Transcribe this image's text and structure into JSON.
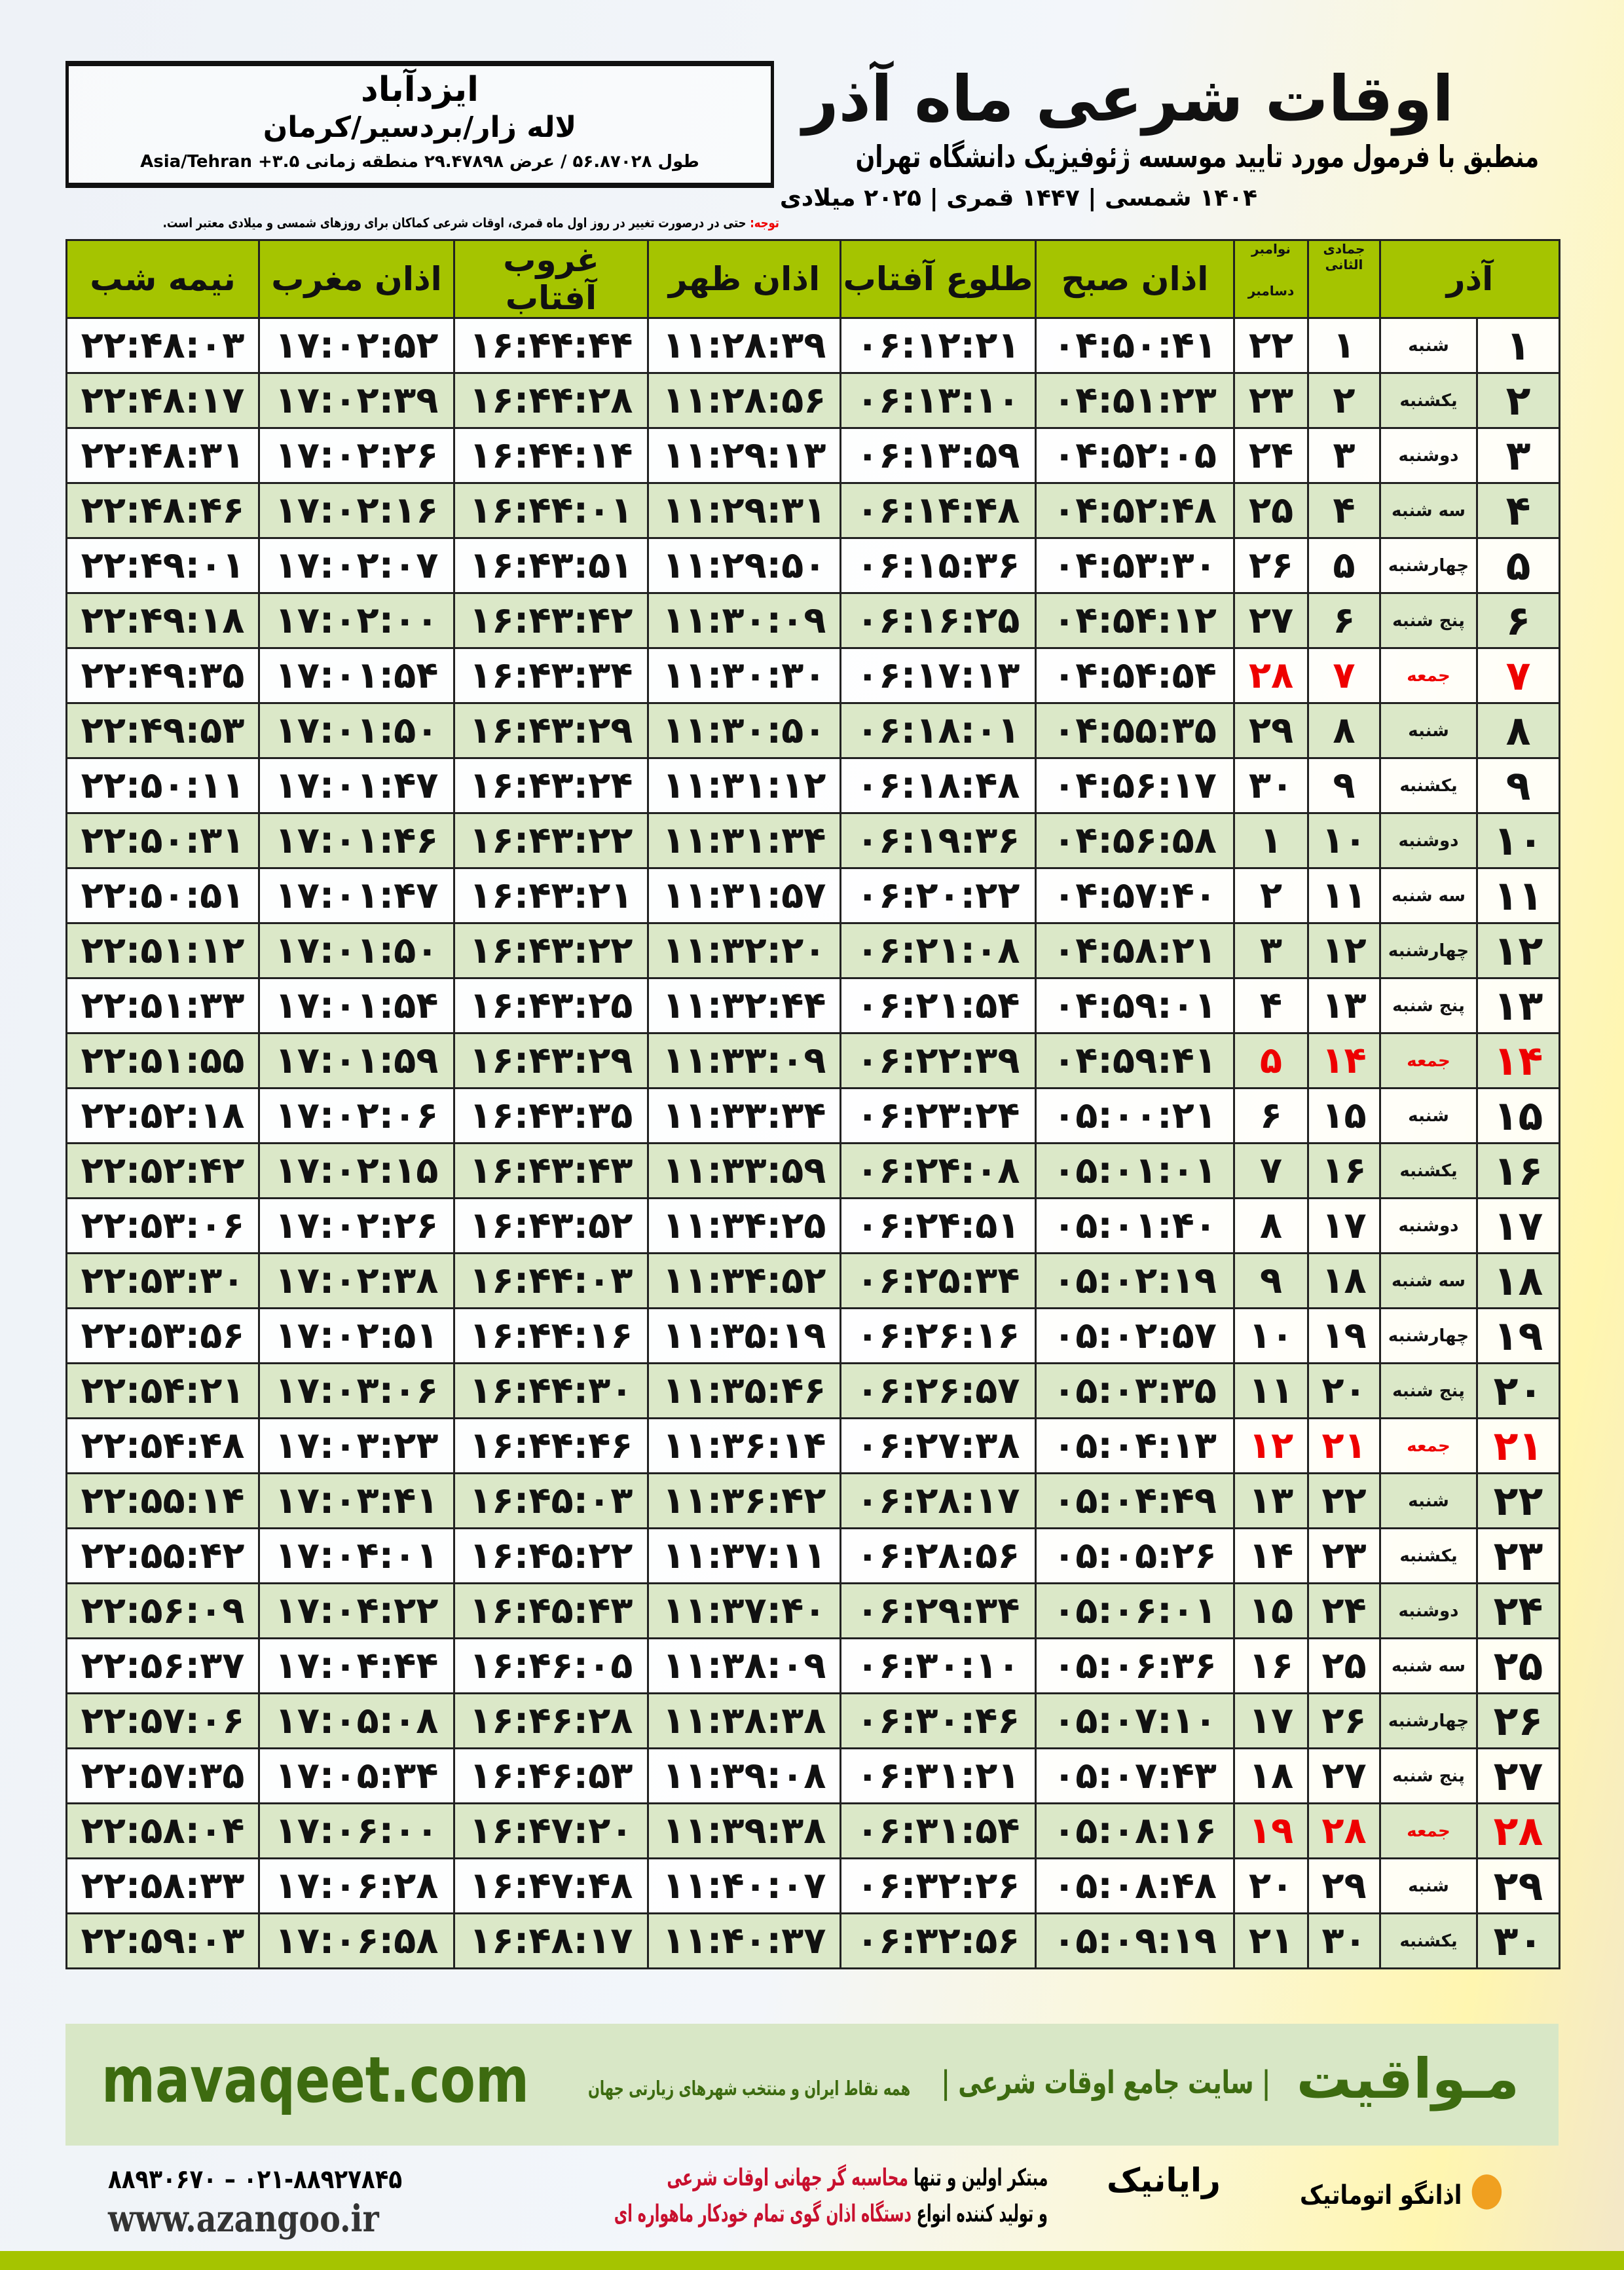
{
  "location": {
    "city": "ایزدآباد",
    "region": "لاله زار/بردسیر/کرمان",
    "coords": "طول ۵۶.۸۷۰۲۸ / عرض ۲۹.۴۷۸۹۸ منطقه زمانی ۳.۵+ Asia/Tehran"
  },
  "header": {
    "title": "اوقات شرعی ماه آذر",
    "subtitle": "منطبق با فرمول مورد تایید موسسه ژئوفیزیک دانشگاه تهران",
    "dates": "۱۴۰۴ شمسی | ۱۴۴۷ قمری | ۲۰۲۵ میلادی"
  },
  "note": {
    "label": "توجه:",
    "text": " حتی در درصورت تغییر در روز اول ماه قمری، اوقات شرعی کماکان برای روزهای شمسی و میلادی معتبر است."
  },
  "colors": {
    "header_green": "#a5c400",
    "row_green": "#dbe8c8",
    "friday_red": "#e00000",
    "brand_green": "#3d6b10"
  },
  "table": {
    "headers": {
      "azar": "آذر",
      "jumada": "جمادی الثانی",
      "november": "نوامبر",
      "december": "دسامبر",
      "fajr": "اذان صبح",
      "sunrise": "طلوع آفتاب",
      "dhuhr": "اذان ظهر",
      "sunset": "غروب آفتاب",
      "maghrib": "اذان مغرب",
      "midnight": "نیمه شب"
    },
    "rows": [
      [
        "۱",
        "شنبه",
        "۱",
        "۲۲",
        "۰۴:۵۰:۴۱",
        "۰۶:۱۲:۲۱",
        "۱۱:۲۸:۳۹",
        "۱۶:۴۴:۴۴",
        "۱۷:۰۲:۵۲",
        "۲۲:۴۸:۰۳"
      ],
      [
        "۲",
        "یکشنبه",
        "۲",
        "۲۳",
        "۰۴:۵۱:۲۳",
        "۰۶:۱۳:۱۰",
        "۱۱:۲۸:۵۶",
        "۱۶:۴۴:۲۸",
        "۱۷:۰۲:۳۹",
        "۲۲:۴۸:۱۷"
      ],
      [
        "۳",
        "دوشنبه",
        "۳",
        "۲۴",
        "۰۴:۵۲:۰۵",
        "۰۶:۱۳:۵۹",
        "۱۱:۲۹:۱۳",
        "۱۶:۴۴:۱۴",
        "۱۷:۰۲:۲۶",
        "۲۲:۴۸:۳۱"
      ],
      [
        "۴",
        "سه شنبه",
        "۴",
        "۲۵",
        "۰۴:۵۲:۴۸",
        "۰۶:۱۴:۴۸",
        "۱۱:۲۹:۳۱",
        "۱۶:۴۴:۰۱",
        "۱۷:۰۲:۱۶",
        "۲۲:۴۸:۴۶"
      ],
      [
        "۵",
        "چهارشنبه",
        "۵",
        "۲۶",
        "۰۴:۵۳:۳۰",
        "۰۶:۱۵:۳۶",
        "۱۱:۲۹:۵۰",
        "۱۶:۴۳:۵۱",
        "۱۷:۰۲:۰۷",
        "۲۲:۴۹:۰۱"
      ],
      [
        "۶",
        "پنج شنبه",
        "۶",
        "۲۷",
        "۰۴:۵۴:۱۲",
        "۰۶:۱۶:۲۵",
        "۱۱:۳۰:۰۹",
        "۱۶:۴۳:۴۲",
        "۱۷:۰۲:۰۰",
        "۲۲:۴۹:۱۸"
      ],
      [
        "۷",
        "جمعه",
        "۷",
        "۲۸",
        "۰۴:۵۴:۵۴",
        "۰۶:۱۷:۱۳",
        "۱۱:۳۰:۳۰",
        "۱۶:۴۳:۳۴",
        "۱۷:۰۱:۵۴",
        "۲۲:۴۹:۳۵"
      ],
      [
        "۸",
        "شنبه",
        "۸",
        "۲۹",
        "۰۴:۵۵:۳۵",
        "۰۶:۱۸:۰۱",
        "۱۱:۳۰:۵۰",
        "۱۶:۴۳:۲۹",
        "۱۷:۰۱:۵۰",
        "۲۲:۴۹:۵۳"
      ],
      [
        "۹",
        "یکشنبه",
        "۹",
        "۳۰",
        "۰۴:۵۶:۱۷",
        "۰۶:۱۸:۴۸",
        "۱۱:۳۱:۱۲",
        "۱۶:۴۳:۲۴",
        "۱۷:۰۱:۴۷",
        "۲۲:۵۰:۱۱"
      ],
      [
        "۱۰",
        "دوشنبه",
        "۱۰",
        "۱",
        "۰۴:۵۶:۵۸",
        "۰۶:۱۹:۳۶",
        "۱۱:۳۱:۳۴",
        "۱۶:۴۳:۲۲",
        "۱۷:۰۱:۴۶",
        "۲۲:۵۰:۳۱"
      ],
      [
        "۱۱",
        "سه شنبه",
        "۱۱",
        "۲",
        "۰۴:۵۷:۴۰",
        "۰۶:۲۰:۲۲",
        "۱۱:۳۱:۵۷",
        "۱۶:۴۳:۲۱",
        "۱۷:۰۱:۴۷",
        "۲۲:۵۰:۵۱"
      ],
      [
        "۱۲",
        "چهارشنبه",
        "۱۲",
        "۳",
        "۰۴:۵۸:۲۱",
        "۰۶:۲۱:۰۸",
        "۱۱:۳۲:۲۰",
        "۱۶:۴۳:۲۲",
        "۱۷:۰۱:۵۰",
        "۲۲:۵۱:۱۲"
      ],
      [
        "۱۳",
        "پنج شنبه",
        "۱۳",
        "۴",
        "۰۴:۵۹:۰۱",
        "۰۶:۲۱:۵۴",
        "۱۱:۳۲:۴۴",
        "۱۶:۴۳:۲۵",
        "۱۷:۰۱:۵۴",
        "۲۲:۵۱:۳۳"
      ],
      [
        "۱۴",
        "جمعه",
        "۱۴",
        "۵",
        "۰۴:۵۹:۴۱",
        "۰۶:۲۲:۳۹",
        "۱۱:۳۳:۰۹",
        "۱۶:۴۳:۲۹",
        "۱۷:۰۱:۵۹",
        "۲۲:۵۱:۵۵"
      ],
      [
        "۱۵",
        "شنبه",
        "۱۵",
        "۶",
        "۰۵:۰۰:۲۱",
        "۰۶:۲۳:۲۴",
        "۱۱:۳۳:۳۴",
        "۱۶:۴۳:۳۵",
        "۱۷:۰۲:۰۶",
        "۲۲:۵۲:۱۸"
      ],
      [
        "۱۶",
        "یکشنبه",
        "۱۶",
        "۷",
        "۰۵:۰۱:۰۱",
        "۰۶:۲۴:۰۸",
        "۱۱:۳۳:۵۹",
        "۱۶:۴۳:۴۳",
        "۱۷:۰۲:۱۵",
        "۲۲:۵۲:۴۲"
      ],
      [
        "۱۷",
        "دوشنبه",
        "۱۷",
        "۸",
        "۰۵:۰۱:۴۰",
        "۰۶:۲۴:۵۱",
        "۱۱:۳۴:۲۵",
        "۱۶:۴۳:۵۲",
        "۱۷:۰۲:۲۶",
        "۲۲:۵۳:۰۶"
      ],
      [
        "۱۸",
        "سه شنبه",
        "۱۸",
        "۹",
        "۰۵:۰۲:۱۹",
        "۰۶:۲۵:۳۴",
        "۱۱:۳۴:۵۲",
        "۱۶:۴۴:۰۳",
        "۱۷:۰۲:۳۸",
        "۲۲:۵۳:۳۰"
      ],
      [
        "۱۹",
        "چهارشنبه",
        "۱۹",
        "۱۰",
        "۰۵:۰۲:۵۷",
        "۰۶:۲۶:۱۶",
        "۱۱:۳۵:۱۹",
        "۱۶:۴۴:۱۶",
        "۱۷:۰۲:۵۱",
        "۲۲:۵۳:۵۶"
      ],
      [
        "۲۰",
        "پنج شنبه",
        "۲۰",
        "۱۱",
        "۰۵:۰۳:۳۵",
        "۰۶:۲۶:۵۷",
        "۱۱:۳۵:۴۶",
        "۱۶:۴۴:۳۰",
        "۱۷:۰۳:۰۶",
        "۲۲:۵۴:۲۱"
      ],
      [
        "۲۱",
        "جمعه",
        "۲۱",
        "۱۲",
        "۰۵:۰۴:۱۳",
        "۰۶:۲۷:۳۸",
        "۱۱:۳۶:۱۴",
        "۱۶:۴۴:۴۶",
        "۱۷:۰۳:۲۳",
        "۲۲:۵۴:۴۸"
      ],
      [
        "۲۲",
        "شنبه",
        "۲۲",
        "۱۳",
        "۰۵:۰۴:۴۹",
        "۰۶:۲۸:۱۷",
        "۱۱:۳۶:۴۲",
        "۱۶:۴۵:۰۳",
        "۱۷:۰۳:۴۱",
        "۲۲:۵۵:۱۴"
      ],
      [
        "۲۳",
        "یکشنبه",
        "۲۳",
        "۱۴",
        "۰۵:۰۵:۲۶",
        "۰۶:۲۸:۵۶",
        "۱۱:۳۷:۱۱",
        "۱۶:۴۵:۲۲",
        "۱۷:۰۴:۰۱",
        "۲۲:۵۵:۴۲"
      ],
      [
        "۲۴",
        "دوشنبه",
        "۲۴",
        "۱۵",
        "۰۵:۰۶:۰۱",
        "۰۶:۲۹:۳۴",
        "۱۱:۳۷:۴۰",
        "۱۶:۴۵:۴۳",
        "۱۷:۰۴:۲۲",
        "۲۲:۵۶:۰۹"
      ],
      [
        "۲۵",
        "سه شنبه",
        "۲۵",
        "۱۶",
        "۰۵:۰۶:۳۶",
        "۰۶:۳۰:۱۰",
        "۱۱:۳۸:۰۹",
        "۱۶:۴۶:۰۵",
        "۱۷:۰۴:۴۴",
        "۲۲:۵۶:۳۷"
      ],
      [
        "۲۶",
        "چهارشنبه",
        "۲۶",
        "۱۷",
        "۰۵:۰۷:۱۰",
        "۰۶:۳۰:۴۶",
        "۱۱:۳۸:۳۸",
        "۱۶:۴۶:۲۸",
        "۱۷:۰۵:۰۸",
        "۲۲:۵۷:۰۶"
      ],
      [
        "۲۷",
        "پنج شنبه",
        "۲۷",
        "۱۸",
        "۰۵:۰۷:۴۳",
        "۰۶:۳۱:۲۱",
        "۱۱:۳۹:۰۸",
        "۱۶:۴۶:۵۳",
        "۱۷:۰۵:۳۴",
        "۲۲:۵۷:۳۵"
      ],
      [
        "۲۸",
        "جمعه",
        "۲۸",
        "۱۹",
        "۰۵:۰۸:۱۶",
        "۰۶:۳۱:۵۴",
        "۱۱:۳۹:۳۸",
        "۱۶:۴۷:۲۰",
        "۱۷:۰۶:۰۰",
        "۲۲:۵۸:۰۴"
      ],
      [
        "۲۹",
        "شنبه",
        "۲۹",
        "۲۰",
        "۰۵:۰۸:۴۸",
        "۰۶:۳۲:۲۶",
        "۱۱:۴۰:۰۷",
        "۱۶:۴۷:۴۸",
        "۱۷:۰۶:۲۸",
        "۲۲:۵۸:۳۳"
      ],
      [
        "۳۰",
        "یکشنبه",
        "۳۰",
        "۲۱",
        "۰۵:۰۹:۱۹",
        "۰۶:۳۲:۵۶",
        "۱۱:۴۰:۳۷",
        "۱۶:۴۸:۱۷",
        "۱۷:۰۶:۵۸",
        "۲۲:۵۹:۰۳"
      ]
    ]
  },
  "footer": {
    "brand": "مـواقیت",
    "tagline": "| سایت جامع اوقات شرعی |",
    "tagline2": "همه نقاط ایران و منتخب شهرهای زیارتی جهان",
    "site": "mavaqeet.com",
    "slogan1_a": "مبتکر اولین و تنها ",
    "slogan1_b": "محاسبه گر جهانی اوقات شرعی",
    "slogan2_a": "و تولید کننده انواع ",
    "slogan2_b": "دستگاه اذان گوی تمام خودکار ماهواره ای",
    "phones": "۰۲۱-۸۸۹۲۷۸۴۵ – ۸۸۹۳۰۶۷۰",
    "web": "www.azangoo.ir",
    "rayanik": "رایانیک",
    "azangoo": "اذانگو اتوماتیک"
  }
}
